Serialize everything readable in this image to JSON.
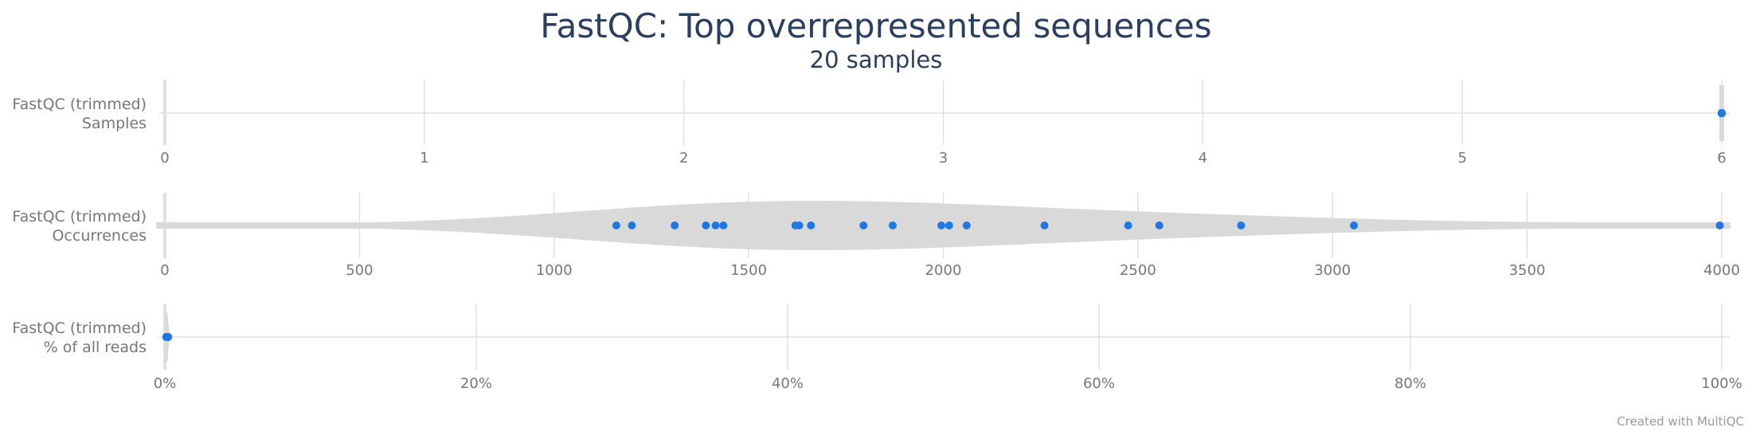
{
  "title": "FastQC: Top overrepresented sequences",
  "subtitle": "20 samples",
  "credit": "Created with MultiQC",
  "colors": {
    "point": "#1f77e4",
    "violin": "#d9d9d9",
    "grid": "#e0e0e0",
    "text": "#2a3f5f",
    "axis_text": "#777777"
  },
  "chart_data": [
    {
      "type": "violin",
      "label": [
        "FastQC (trimmed)",
        "Samples"
      ],
      "xlim": [
        0,
        6
      ],
      "ticks": [
        0,
        1,
        2,
        3,
        4,
        5,
        6
      ],
      "tick_labels": [
        "0",
        "1",
        "2",
        "3",
        "4",
        "5",
        "6"
      ],
      "values": [
        6,
        6,
        6,
        6,
        6,
        6,
        6,
        6,
        6,
        6,
        6,
        6,
        6,
        6,
        6,
        6,
        6,
        6,
        6,
        6
      ]
    },
    {
      "type": "violin",
      "label": [
        "FastQC (trimmed)",
        "Occurrences"
      ],
      "xlim": [
        0,
        4000
      ],
      "ticks": [
        0,
        500,
        1000,
        1500,
        2000,
        2500,
        3000,
        3500,
        4000
      ],
      "tick_labels": [
        "0",
        "500",
        "1000",
        "1500",
        "2000",
        "2500",
        "3000",
        "3500",
        "4000"
      ],
      "values": [
        1160,
        1200,
        1310,
        1390,
        1415,
        1435,
        1620,
        1630,
        1660,
        1795,
        1870,
        1995,
        2015,
        2060,
        2260,
        2475,
        2555,
        2765,
        3055,
        3995
      ]
    },
    {
      "type": "violin",
      "label": [
        "FastQC (trimmed)",
        "% of all reads"
      ],
      "xlim": [
        0,
        100
      ],
      "ticks": [
        0,
        20,
        40,
        60,
        80,
        100
      ],
      "tick_labels": [
        "0%",
        "20%",
        "40%",
        "60%",
        "80%",
        "100%"
      ],
      "values": [
        0.1,
        0.1,
        0.1,
        0.1,
        0.1,
        0.1,
        0.1,
        0.12,
        0.12,
        0.13,
        0.13,
        0.14,
        0.14,
        0.15,
        0.16,
        0.17,
        0.18,
        0.19,
        0.2,
        0.22
      ]
    }
  ]
}
